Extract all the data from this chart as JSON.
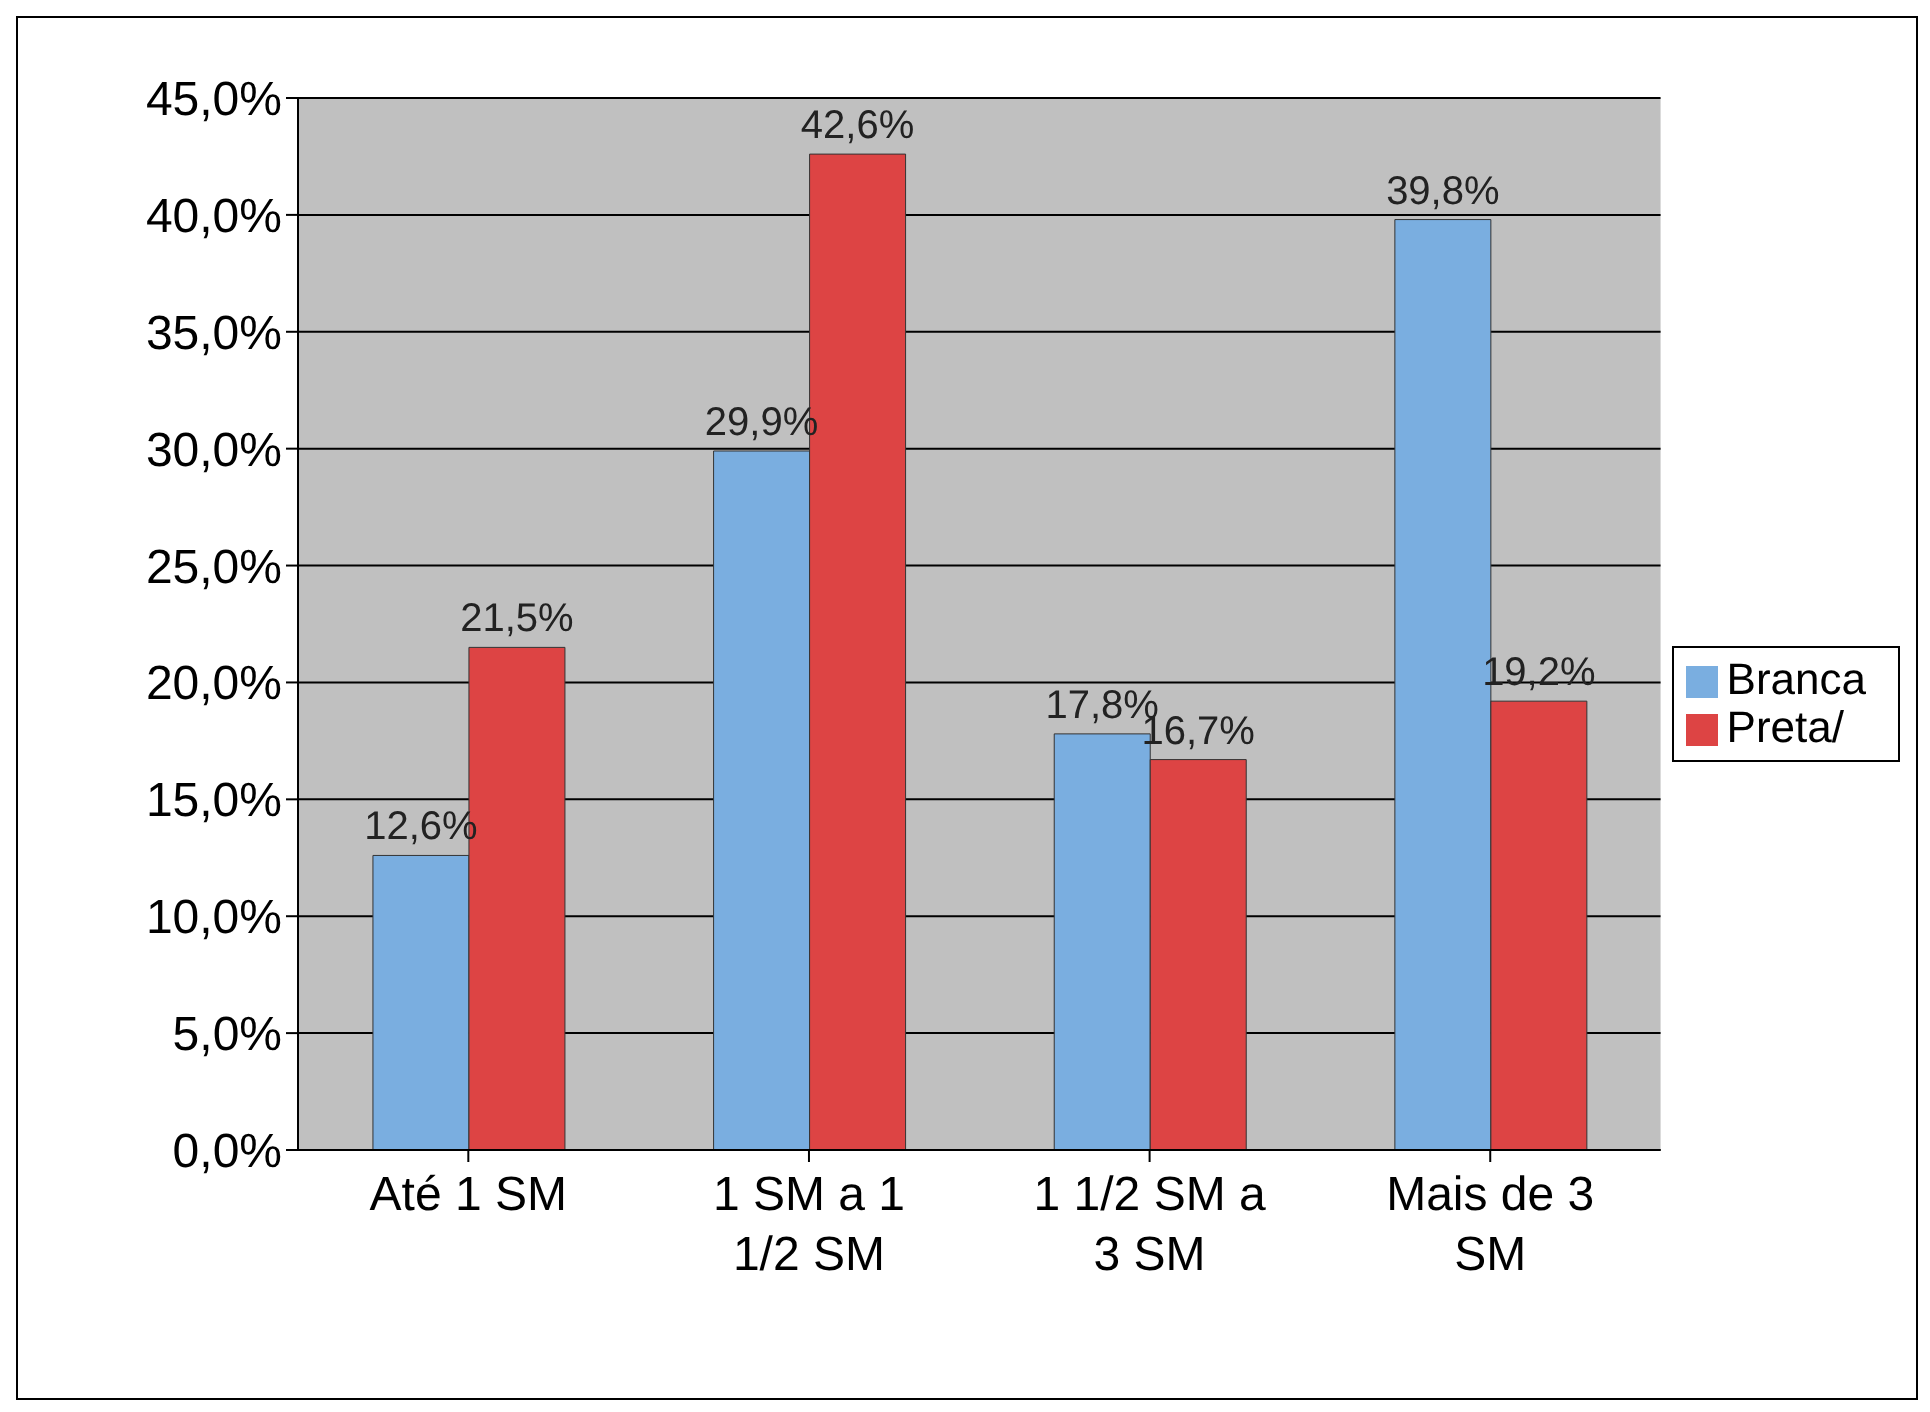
{
  "chart_data": {
    "type": "bar",
    "categories": [
      "Até 1 SM",
      "1 SM a 1 1/2 SM",
      "1 1/2 SM a 3 SM",
      "Mais de 3 SM"
    ],
    "series": [
      {
        "name": "Branca",
        "color": "#7aaee0",
        "values": [
          12.6,
          29.9,
          17.8,
          39.8
        ],
        "value_labels": [
          "12,6%",
          "29,9%",
          "17,8%",
          "39,8%"
        ]
      },
      {
        "name": "Preta/",
        "color": "#dd4444",
        "values": [
          21.5,
          42.6,
          16.7,
          19.2
        ],
        "value_labels": [
          "21,5%",
          "42,6%",
          "16,7%",
          "19,2%"
        ]
      }
    ],
    "ylim": [
      0,
      45
    ],
    "yticks": [
      {
        "value": 0,
        "label": "0,0%"
      },
      {
        "value": 5,
        "label": "5,0%"
      },
      {
        "value": 10,
        "label": "10,0%"
      },
      {
        "value": 15,
        "label": "15,0%"
      },
      {
        "value": 20,
        "label": "20,0%"
      },
      {
        "value": 25,
        "label": "25,0%"
      },
      {
        "value": 30,
        "label": "30,0%"
      },
      {
        "value": 35,
        "label": "35,0%"
      },
      {
        "value": 40,
        "label": "40,0%"
      },
      {
        "value": 45,
        "label": "45,0%"
      }
    ],
    "grid": "y",
    "legend": "right"
  }
}
